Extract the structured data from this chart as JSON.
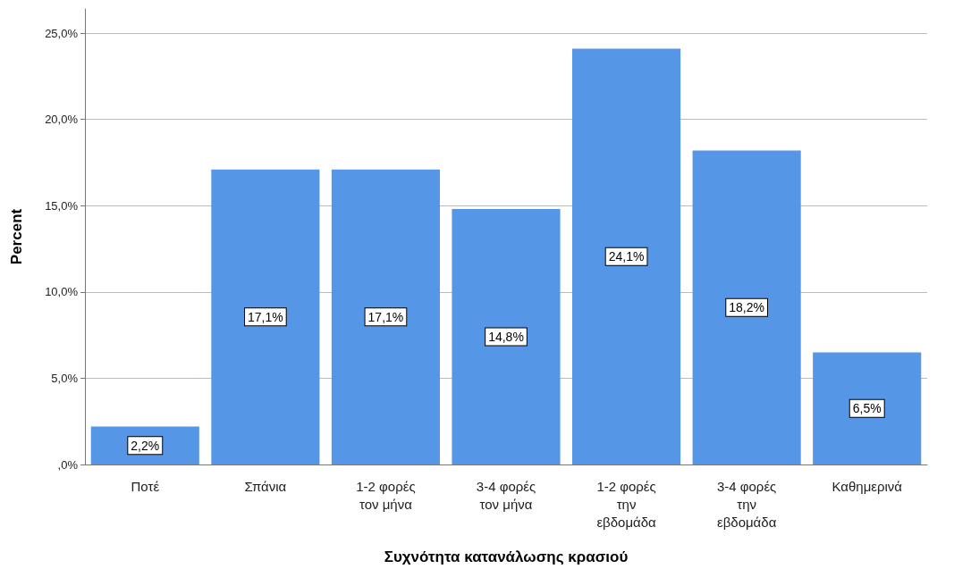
{
  "chart_data": {
    "type": "bar",
    "xlabel": "Συχνότητα κατανάλωσης κρασιού",
    "ylabel": "Percent",
    "categories": [
      "Ποτέ",
      "Σπάνια",
      "1-2 φορές τον μήνα",
      "3-4 φορές τον μήνα",
      "1-2 φορές την εβδομάδα",
      "3-4 φορές την εβδομάδα",
      "Καθημερινά"
    ],
    "values": [
      2.2,
      17.1,
      17.1,
      14.8,
      24.1,
      18.2,
      6.5
    ],
    "value_labels": [
      "2,2%",
      "17,1%",
      "17,1%",
      "14,8%",
      "24,1%",
      "18,2%",
      "6,5%"
    ],
    "color": "#5596e6",
    "ylim": [
      0,
      26.4
    ],
    "yticks": [
      {
        "value": 0,
        "label": ",0%"
      },
      {
        "value": 5,
        "label": "5,0%"
      },
      {
        "value": 10,
        "label": "10,0%"
      },
      {
        "value": 15,
        "label": "15,0%"
      },
      {
        "value": 20,
        "label": "20,0%"
      },
      {
        "value": 25,
        "label": "25,0%"
      }
    ],
    "grid": "y"
  }
}
